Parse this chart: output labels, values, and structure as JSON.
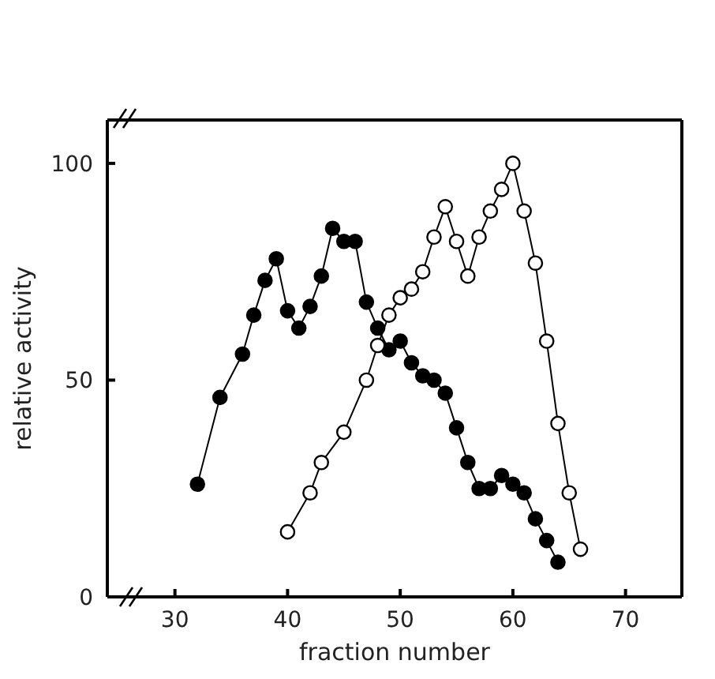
{
  "chart_data": {
    "type": "line",
    "xlabel": "fraction number",
    "ylabel": "relative activity",
    "xlim": [
      24,
      75
    ],
    "xticks": [
      30,
      40,
      50,
      60,
      70
    ],
    "ylim": [
      0,
      110
    ],
    "yticks": [
      0,
      50,
      100
    ],
    "marker": "circle",
    "line_style": "solid",
    "grid": false,
    "series": [
      {
        "color": "#000000",
        "x": [
          32,
          34,
          36,
          37,
          38,
          39,
          40,
          41,
          42,
          43,
          44,
          45,
          46,
          47,
          48,
          49,
          50,
          51,
          52,
          53,
          54,
          55,
          56,
          57,
          58,
          59,
          60,
          61,
          62,
          63,
          64
        ],
        "values": [
          26,
          46,
          56,
          65,
          73,
          78,
          66,
          62,
          67,
          74,
          85,
          82,
          82,
          68,
          62,
          57,
          59,
          54,
          51,
          50,
          47,
          39,
          31,
          25,
          25,
          28,
          26,
          24,
          18,
          13,
          8
        ]
      },
      {
        "color": "#000000",
        "x": [
          40,
          42,
          43,
          45,
          47,
          48,
          49,
          50,
          51,
          52,
          53,
          54,
          55,
          56,
          57,
          58,
          59,
          60,
          61,
          62,
          63,
          64,
          65,
          66
        ],
        "values": [
          15,
          24,
          31,
          38,
          50,
          58,
          65,
          69,
          71,
          75,
          83,
          90,
          82,
          74,
          83,
          89,
          94,
          100,
          89,
          77,
          59,
          40,
          24,
          11
        ]
      }
    ]
  }
}
